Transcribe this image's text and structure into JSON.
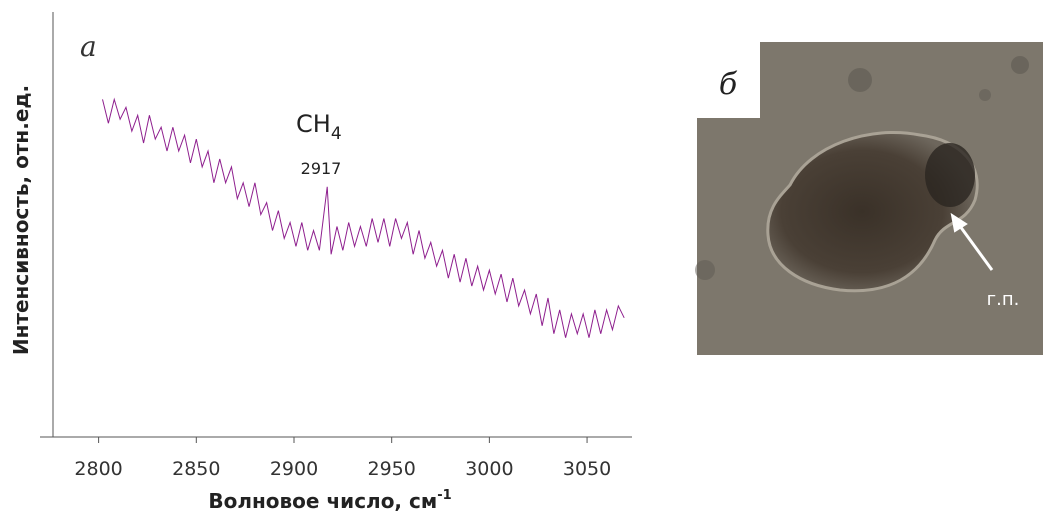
{
  "chart_data": {
    "type": "line",
    "panel_label": "а",
    "xlabel": "Волновое число, см",
    "xlabel_sup": "-1",
    "ylabel": "Интенсивность, отн.ед.",
    "annotation": "CH",
    "annotation_sub": "4",
    "peak_label": "2917",
    "xlim": [
      2770,
      3073
    ],
    "ylim": [
      0,
      107
    ],
    "xticks": [
      2800,
      2850,
      2900,
      2950,
      3000,
      3050
    ],
    "x": [
      2802,
      2805,
      2808,
      2811,
      2814,
      2817,
      2820,
      2823,
      2826,
      2829,
      2832,
      2835,
      2838,
      2841,
      2844,
      2847,
      2850,
      2853,
      2856,
      2859,
      2862,
      2865,
      2868,
      2871,
      2874,
      2877,
      2880,
      2883,
      2886,
      2889,
      2892,
      2895,
      2898,
      2901,
      2904,
      2907,
      2910,
      2913,
      2917,
      2919,
      2922,
      2925,
      2928,
      2931,
      2934,
      2937,
      2940,
      2943,
      2946,
      2949,
      2952,
      2955,
      2958,
      2961,
      2964,
      2967,
      2970,
      2973,
      2976,
      2979,
      2982,
      2985,
      2988,
      2991,
      2994,
      2997,
      3000,
      3003,
      3006,
      3009,
      3012,
      3015,
      3018,
      3021,
      3024,
      3027,
      3030,
      3033,
      3036,
      3039,
      3042,
      3045,
      3048,
      3051,
      3054,
      3057,
      3060,
      3063,
      3066,
      3069
    ],
    "series": [
      {
        "color": "#8e1f8e",
        "values": [
          85,
          79,
          85,
          80,
          83,
          77,
          81,
          74,
          81,
          75,
          78,
          72,
          78,
          72,
          76,
          69,
          75,
          68,
          72,
          64,
          70,
          64,
          68,
          60,
          64,
          58,
          64,
          56,
          59,
          52,
          57,
          50,
          54,
          48,
          54,
          47,
          52,
          47,
          63,
          46,
          53,
          47,
          54,
          48,
          53,
          48,
          55,
          49,
          55,
          48,
          55,
          50,
          54,
          46,
          52,
          45,
          49,
          43,
          47,
          40,
          46,
          39,
          45,
          38,
          43,
          37,
          42,
          36,
          41,
          34,
          40,
          33,
          37,
          31,
          36,
          28,
          35,
          26,
          32,
          25,
          31,
          26,
          31,
          25,
          32,
          26,
          32,
          27,
          33,
          30
        ]
      }
    ]
  },
  "image": {
    "panel_label": "б",
    "annotation": "г.п."
  }
}
